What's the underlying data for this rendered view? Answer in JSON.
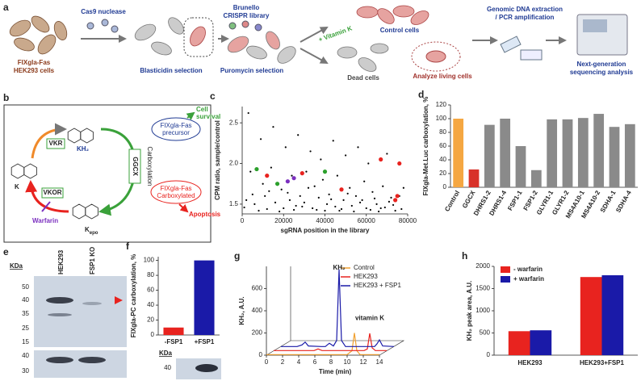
{
  "panels": {
    "a": {
      "label": "a",
      "cas9": "Cas9 nuclease",
      "cells": [
        "FIXgla-Fas",
        "HEK293 cells"
      ],
      "blasticidin": "Blasticidin selection",
      "library": [
        "Brunello",
        "CRISPR library"
      ],
      "puromycin": "Puromycin selection",
      "vitamin_k": "+ Vitamin K",
      "control": "Control cells",
      "dead": "Dead cells",
      "living": "Analyze living cells",
      "dna": [
        "Genomic DNA extraction",
        "/ PCR amplification"
      ],
      "ngs": [
        "Next-generation",
        "sequencing analysis"
      ]
    },
    "b": {
      "label": "b",
      "vkr": "VKR",
      "kh2": "KH₂",
      "ggcx": "GGCX",
      "carboxylation": "Carboxylation",
      "precursor": [
        "FIXgla-Fas",
        "precursor"
      ],
      "survival": [
        "Cell",
        "survival"
      ],
      "carboxylated": [
        "FIXgla-Fas",
        "Carboxylated"
      ],
      "apoptosis": "Apoptosis",
      "k": "K",
      "vkor": "VKOR",
      "warfarin": "Warfarin",
      "k_epo": [
        "K",
        "epo"
      ]
    },
    "e": {
      "label": "e",
      "kda": "KDa",
      "lanes": [
        "HEK293",
        "FSP1 KO"
      ],
      "top_marks": [
        50,
        40,
        35,
        25,
        15
      ],
      "bottom_marks": [
        40,
        30
      ]
    },
    "f_blot": {
      "kda": "KDa",
      "marks": [
        40
      ]
    }
  },
  "chart_data": [
    {
      "type": "scatter",
      "label": "c",
      "x_label": "sgRNA position in the library",
      "y_label": "CPM ratio, sample/control",
      "xlim": [
        0,
        80000
      ],
      "ylim": [
        1.38,
        2.7
      ],
      "xticks": [
        0,
        20000,
        40000,
        60000,
        80000
      ],
      "yticks": [
        1.5,
        {
          "value": 2,
          "label": "2.0"
        },
        2.5
      ],
      "series": [
        {
          "color": "#000000",
          "x": [
            3000,
            9000,
            15000,
            21000,
            27000,
            33000,
            38000,
            44000,
            50000,
            56000,
            61000,
            70000,
            4000,
            10000,
            14000,
            19000,
            24000,
            28000,
            31000,
            35000,
            39000,
            42000,
            46000,
            52000,
            55000,
            59000,
            63000,
            68000,
            72000,
            78000,
            2000,
            6000,
            11000,
            16000,
            20000,
            23000,
            26000,
            30000,
            34000,
            37000,
            41000,
            45000,
            49000,
            53000,
            57000,
            60000,
            65000,
            69000,
            73000,
            77000,
            8000,
            18000,
            36000,
            47000,
            66000,
            5000,
            13000,
            22000,
            32000,
            43000,
            51000,
            58000,
            64000,
            71000,
            76000,
            1000,
            12000,
            25000,
            29000,
            40000,
            48000,
            54000,
            62000,
            67000,
            74000
          ],
          "values": [
            2.62,
            2.3,
            2.45,
            2.2,
            2.35,
            2.15,
            2.05,
            2.28,
            2.1,
            2.2,
            2.0,
            2.12,
            1.9,
            1.75,
            1.95,
            1.68,
            1.85,
            1.6,
            1.9,
            1.72,
            1.8,
            1.62,
            1.85,
            1.7,
            1.6,
            1.78,
            1.65,
            1.72,
            1.58,
            1.7,
            1.55,
            1.5,
            1.6,
            1.52,
            1.45,
            1.55,
            1.48,
            1.52,
            1.45,
            1.58,
            1.5,
            1.47,
            1.55,
            1.48,
            1.52,
            1.45,
            1.5,
            1.46,
            1.49,
            1.44,
            1.42,
            1.41,
            1.43,
            1.42,
            1.41,
            1.62,
            1.66,
            1.64,
            1.7,
            1.56,
            1.63,
            1.55,
            1.57,
            1.53,
            1.6,
            1.46,
            1.44,
            1.43,
            1.47,
            1.42,
            1.44,
            1.41,
            1.43,
            1.45,
            1.42
          ]
        },
        {
          "color": "#e8231f",
          "x": [
            67000,
            76000,
            29000,
            12000,
            48000,
            75000,
            74000
          ],
          "values": [
            2.05,
            2.0,
            1.88,
            1.85,
            1.68,
            1.6,
            1.55
          ]
        },
        {
          "color": "#2ca02c",
          "x": [
            7000,
            40000,
            17000
          ],
          "values": [
            1.93,
            1.9,
            1.75
          ]
        },
        {
          "color": "#7b2fbf",
          "x": [
            22000,
            25000
          ],
          "values": [
            1.78,
            1.82
          ]
        }
      ]
    },
    {
      "type": "bar",
      "label": "d",
      "y_label": "FIXgla-Met.Luc carboxylation, %",
      "categories": [
        "Control",
        "GGCX",
        "DHRS1-2",
        "DHRS1-4",
        "FSP1-1",
        "FSP1-2",
        "GLYR1-1",
        "GLYR1-2",
        "MS4A10-1",
        "MS4A10-2",
        "SDHA-1",
        "SDHA-4"
      ],
      "values": [
        100,
        26,
        91,
        100,
        60,
        25,
        99,
        99,
        101,
        107,
        88,
        92
      ],
      "colors": [
        "#f5a742",
        "#d8322a",
        "#8a8a8a",
        "#8a8a8a",
        "#8a8a8a",
        "#8a8a8a",
        "#8a8a8a",
        "#8a8a8a",
        "#8a8a8a",
        "#8a8a8a",
        "#8a8a8a",
        "#8a8a8a"
      ],
      "ylim": [
        0,
        120
      ],
      "yticks": [
        0,
        20,
        40,
        60,
        80,
        100,
        120
      ]
    },
    {
      "type": "bar",
      "label": "f",
      "y_label": "FIXgla-PC carboxylation, %",
      "categories": [
        "-FSP1",
        "+FSP1"
      ],
      "values": [
        10,
        100
      ],
      "colors": [
        "#e8231f",
        "#1a1aa8"
      ],
      "ylim": [
        0,
        105
      ],
      "yticks": [
        0,
        20,
        40,
        60,
        80,
        100
      ]
    },
    {
      "type": "line",
      "label": "g",
      "x_label": "Time (min)",
      "y_label": "KH₂, A.U.",
      "x": [
        0,
        2,
        2.6,
        3,
        3.4,
        5,
        5.5,
        6,
        6.5,
        6.9,
        7.2,
        7.5,
        8,
        10,
        10.6,
        10.9,
        11.2,
        11.6,
        11.9,
        12.2,
        12.6,
        14
      ],
      "xlim": [
        0,
        14
      ],
      "xticks": [
        0,
        2,
        4,
        6,
        8,
        10,
        12,
        14
      ],
      "ylim": [
        0,
        800
      ],
      "yticks": [
        0,
        200,
        400,
        600
      ],
      "annotations": [
        "KH₂",
        "vitamin K"
      ],
      "series": [
        {
          "name": "Control",
          "color": "#f0a030",
          "values": [
            5,
            5,
            5,
            5,
            5,
            5,
            5,
            5,
            5,
            5,
            5,
            5,
            5,
            5,
            40,
            200,
            40,
            5,
            5,
            5,
            5,
            5
          ]
        },
        {
          "name": "HEK293",
          "color": "#e8231f",
          "values": [
            5,
            5,
            5,
            5,
            5,
            5,
            20,
            5,
            5,
            5,
            5,
            5,
            5,
            5,
            5,
            5,
            5,
            20,
            160,
            30,
            5,
            5
          ]
        },
        {
          "name": "HEK293 + FSP1",
          "color": "#1a1aa8",
          "values": [
            5,
            5,
            20,
            45,
            10,
            5,
            5,
            35,
            10,
            60,
            700,
            60,
            5,
            5,
            5,
            5,
            5,
            5,
            30,
            65,
            10,
            5
          ]
        }
      ]
    },
    {
      "type": "grouped_bar",
      "label": "h",
      "y_label": "KH₂ peak area, A.U.",
      "categories": [
        "HEK293",
        "HEK293+FSP1"
      ],
      "ylim": [
        0,
        2000
      ],
      "yticks": [
        0,
        500,
        1000,
        1500,
        2000
      ],
      "legend": "upper left",
      "series": [
        {
          "name": "- warfarin",
          "color": "#e8231f",
          "values": [
            540,
            1760
          ]
        },
        {
          "name": "+ warfarin",
          "color": "#1a1aa8",
          "values": [
            560,
            1800
          ]
        }
      ]
    }
  ]
}
